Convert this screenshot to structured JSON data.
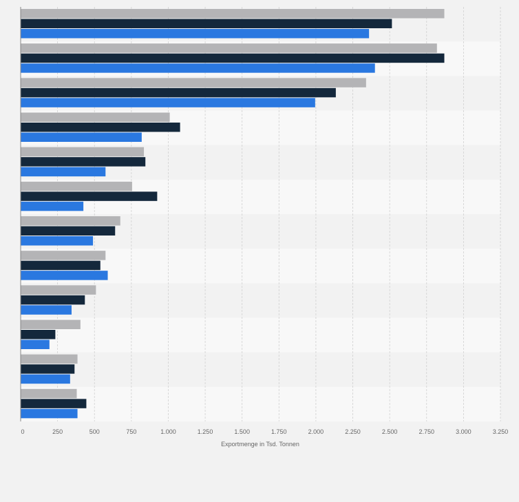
{
  "chart_data": {
    "type": "bar",
    "orientation": "horizontal",
    "title": "",
    "xlabel": "Exportmenge in Tsd. Tonnen",
    "ylabel": "",
    "xlim": [
      0,
      3250
    ],
    "x_ticks": [
      0,
      250,
      500,
      750,
      1000,
      1250,
      1500,
      1750,
      2000,
      2250,
      2500,
      2750,
      3000,
      3250
    ],
    "x_tick_labels": [
      "0",
      "250",
      "500",
      "750",
      "1.000",
      "1.250",
      "1.500",
      "1.750",
      "2.000",
      "2.250",
      "2.500",
      "2.750",
      "3.000",
      "3.250"
    ],
    "categories": [
      "",
      "",
      "",
      "",
      "",
      "",
      "",
      "",
      "",
      "",
      "",
      ""
    ],
    "grid": true,
    "legend": "none",
    "series": [
      {
        "color": "#b4b4b6",
        "values": [
          2870,
          2820,
          2340,
          1010,
          835,
          755,
          675,
          575,
          510,
          405,
          385,
          380
        ]
      },
      {
        "color": "#14283c",
        "values": [
          2515,
          2870,
          2135,
          1080,
          845,
          925,
          640,
          540,
          435,
          235,
          365,
          445
        ]
      },
      {
        "color": "#2a78e0",
        "values": [
          2360,
          2400,
          1995,
          820,
          575,
          425,
          490,
          590,
          345,
          195,
          335,
          385
        ]
      }
    ]
  }
}
